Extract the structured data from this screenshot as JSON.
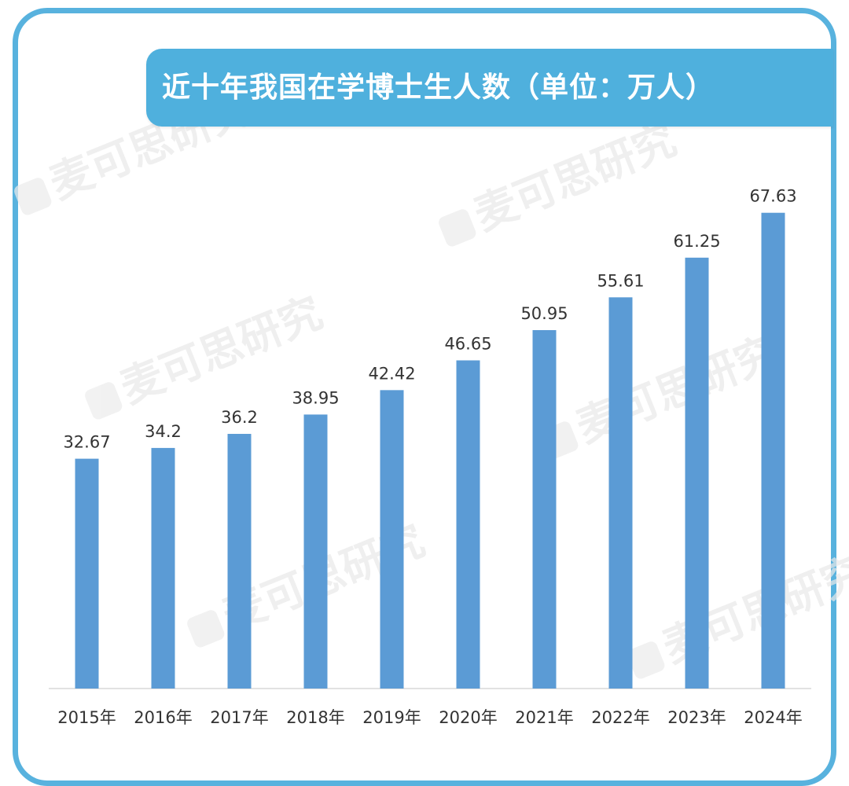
{
  "title": "近十年我国在学博士生人数（单位：万人）",
  "watermark": "麦可思研究",
  "colors": {
    "bar": "#5b9bd5",
    "banner": "#4fb0dd",
    "frame": "#58b2de"
  },
  "chart_data": {
    "type": "bar",
    "title": "近十年我国在学博士生人数（单位：万人）",
    "categories": [
      "2015年",
      "2016年",
      "2017年",
      "2018年",
      "2019年",
      "2020年",
      "2021年",
      "2022年",
      "2023年",
      "2024年"
    ],
    "values": [
      32.67,
      34.2,
      36.2,
      38.95,
      42.42,
      46.65,
      50.95,
      55.61,
      61.25,
      67.63
    ],
    "value_labels": [
      "32.67",
      "34.2",
      "36.2",
      "38.95",
      "42.42",
      "46.65",
      "50.95",
      "55.61",
      "61.25",
      "67.63"
    ],
    "xlabel": "",
    "ylabel": "",
    "ylim": [
      0,
      70
    ],
    "grid": false,
    "legend": "none"
  }
}
